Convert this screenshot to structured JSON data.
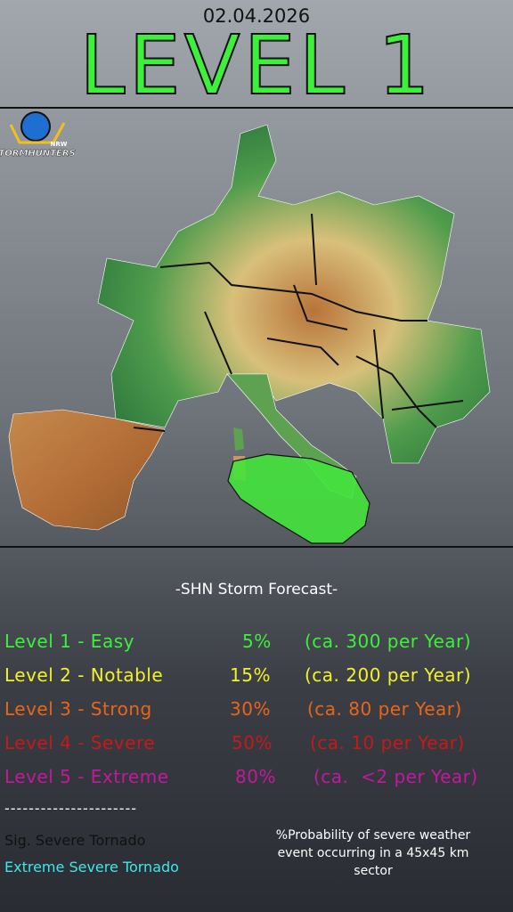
{
  "header": {
    "date": "02.04.2026",
    "title": "LEVEL 1"
  },
  "logo": {
    "text": "STORMHUNTERS",
    "sub": "NRW"
  },
  "legend": {
    "heading": "-SHN Storm Forecast-",
    "levels": [
      {
        "name": "Level 1 - Easy",
        "percent": "5%",
        "rate": "(ca. 300 per Year)",
        "color": "#3cf03c"
      },
      {
        "name": "Level 2 - Notable",
        "percent": "15%",
        "rate": "(ca. 200 per Year)",
        "color": "#f2f22a"
      },
      {
        "name": "Level 3 - Strong",
        "percent": "30%",
        "rate": "(ca. 80 per Year)",
        "color": "#e8661a"
      },
      {
        "name": "Level 4 - Severe",
        "percent": "50%",
        "rate": "(ca. 10 per Year)",
        "color": "#c41a1a"
      },
      {
        "name": "Level 5 - Extreme",
        "percent": "80%",
        "rate": "(ca.  <2 per Year)",
        "color": "#c4189c"
      }
    ],
    "divider": "----------------------",
    "sig_tornado": "Sig. Severe Tornado",
    "extreme_tornado": "Extreme Severe Tornado",
    "note": "%Probability of severe weather event occurring in a 45x45 km sector"
  }
}
